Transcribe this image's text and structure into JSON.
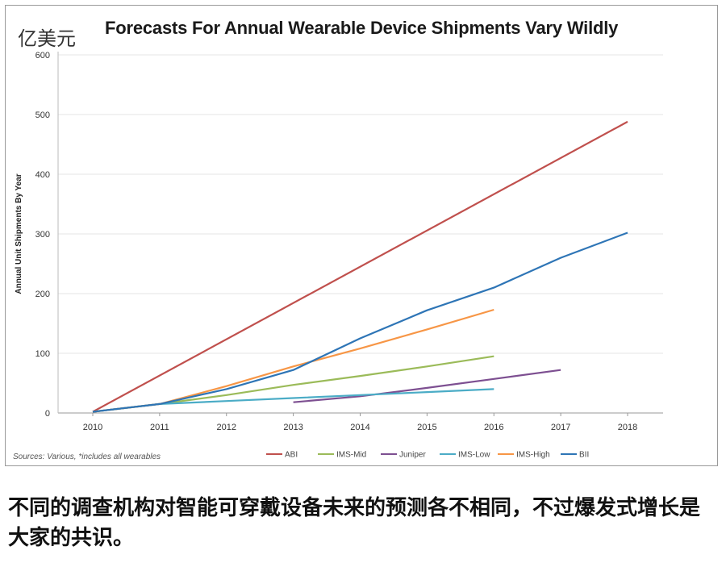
{
  "unit_label": "亿美元",
  "source_note": "Sources: Various, *includes all wearables",
  "caption": "不同的调查机构对智能可穿戴设备未来的预测各不相同，不过爆发式增长是大家的共识。",
  "chart_data": {
    "type": "line",
    "title": "Forecasts For Annual Wearable Device Shipments Vary Wildly",
    "xlabel": "",
    "ylabel": "Annual Unit Shipments By Year",
    "categories": [
      "2010",
      "2011",
      "2012",
      "2013",
      "2014",
      "2015",
      "2016",
      "2017",
      "2018"
    ],
    "yticks": [
      "0",
      "100",
      "200",
      "300",
      "400",
      "500",
      "600"
    ],
    "ylim": [
      0,
      600
    ],
    "grid": true,
    "legend_position": "bottom",
    "series": [
      {
        "name": "ABI",
        "color": "#c0504d",
        "points": [
          [
            2010,
            2
          ],
          [
            2018,
            488
          ]
        ]
      },
      {
        "name": "IMS-Mid",
        "color": "#9bbb59",
        "points": [
          [
            2010,
            2
          ],
          [
            2011,
            15
          ],
          [
            2012,
            30
          ],
          [
            2013,
            47
          ],
          [
            2014,
            62
          ],
          [
            2015,
            78
          ],
          [
            2016,
            95
          ]
        ]
      },
      {
        "name": "Juniper",
        "color": "#7d4f91",
        "points": [
          [
            2013,
            18
          ],
          [
            2014,
            28
          ],
          [
            2015,
            42
          ],
          [
            2016,
            57
          ],
          [
            2017,
            72
          ]
        ]
      },
      {
        "name": "IMS-Low",
        "color": "#4bacc6",
        "points": [
          [
            2010,
            2
          ],
          [
            2011,
            15
          ],
          [
            2012,
            20
          ],
          [
            2013,
            25
          ],
          [
            2014,
            30
          ],
          [
            2015,
            35
          ],
          [
            2016,
            40
          ]
        ]
      },
      {
        "name": "IMS-High",
        "color": "#f79646",
        "points": [
          [
            2010,
            2
          ],
          [
            2011,
            15
          ],
          [
            2012,
            45
          ],
          [
            2013,
            78
          ],
          [
            2014,
            108
          ],
          [
            2015,
            140
          ],
          [
            2016,
            173
          ]
        ]
      },
      {
        "name": "BII",
        "color": "#2e75b6",
        "points": [
          [
            2010,
            2
          ],
          [
            2011,
            15
          ],
          [
            2012,
            40
          ],
          [
            2013,
            72
          ],
          [
            2014,
            125
          ],
          [
            2015,
            172
          ],
          [
            2016,
            210
          ],
          [
            2017,
            260
          ],
          [
            2018,
            302
          ]
        ]
      }
    ]
  }
}
